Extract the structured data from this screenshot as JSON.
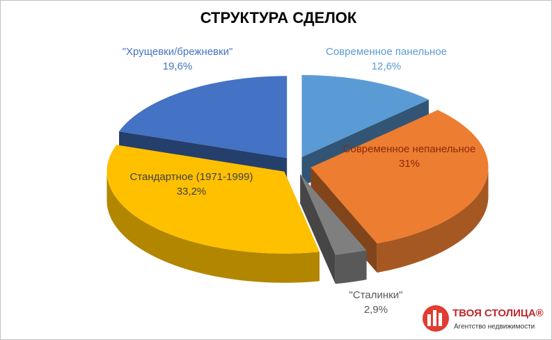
{
  "chart_data": {
    "type": "pie3d",
    "title": "СТРУКТУРА СДЕЛОК",
    "categories": [
      "Современное панельное",
      "Современное непанельное",
      "\"Сталинки\"",
      "Стандартное (1971-1999)",
      "\"Хрущевки/брежневки\""
    ],
    "values": [
      12.6,
      31,
      2.9,
      33.2,
      19.6
    ],
    "value_labels": [
      "12,6%",
      "31%",
      "2,9%",
      "33,2%",
      "19,6%"
    ],
    "colors": [
      "#5b9bd5",
      "#ed7d31",
      "#7f7f7f",
      "#ffc000",
      "#4472c4"
    ],
    "label_colors": [
      "#5b9bd5",
      "#8b2a0a",
      "#595959",
      "#404040",
      "#4472c4"
    ]
  },
  "logo": {
    "name": "ТВОЯ СТОЛИЦА®",
    "tagline": "Агентство недвижимости"
  }
}
